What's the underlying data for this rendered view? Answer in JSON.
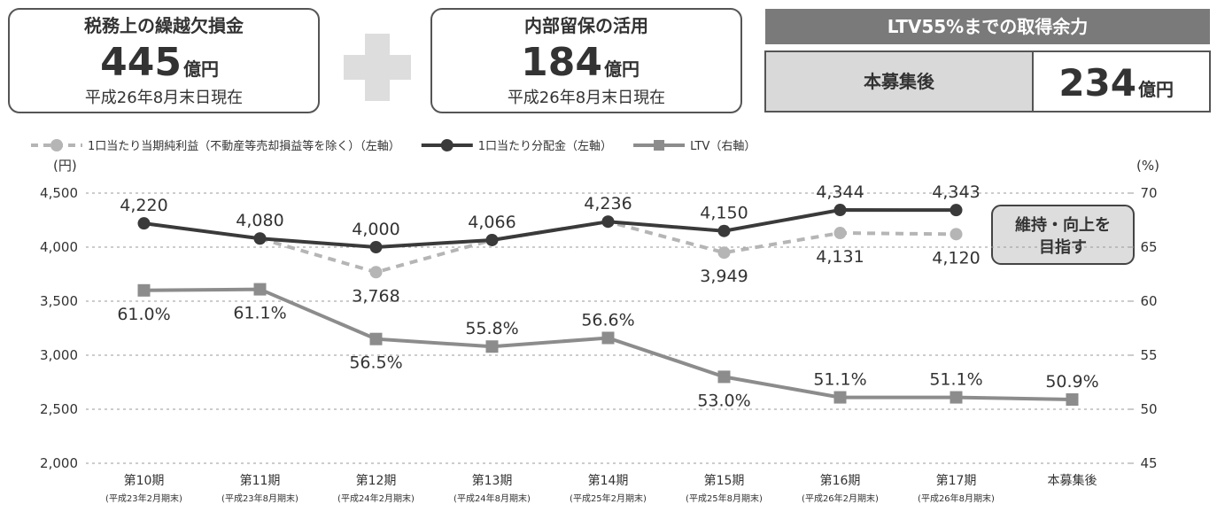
{
  "panels": {
    "box1": {
      "title": "税務上の繰越欠損金",
      "value": 445,
      "unit": "億円",
      "note": "平成26年8月末日現在"
    },
    "box2": {
      "title": "内部留保の活用",
      "value": 184,
      "unit": "億円",
      "note": "平成26年8月末日現在"
    },
    "box3": {
      "header": "LTV55%までの取得余力",
      "label": "本募集後",
      "value": 234,
      "unit": "億円"
    }
  },
  "chart_data": {
    "type": "line",
    "categories": [
      "第10期",
      "第11期",
      "第12期",
      "第13期",
      "第14期",
      "第15期",
      "第16期",
      "第17期",
      "本募集後"
    ],
    "category_sublabels": [
      "(平成23年2月期末)",
      "(平成23年8月期末)",
      "(平成24年2月期末)",
      "(平成24年8月期末)",
      "(平成25年2月期末)",
      "(平成25年8月期末)",
      "(平成26年2月期末)",
      "(平成26年8月期末)",
      null
    ],
    "series": [
      {
        "name": "1口当たり当期純利益（不動産等売却損益等を除く）（左軸）",
        "color": "#b5b5b5",
        "dashed": true,
        "marker": "circle",
        "values": [
          null,
          4080,
          3768,
          4066,
          4236,
          3949,
          4131,
          4120,
          null
        ],
        "value_labels": [
          null,
          null,
          "3,768",
          null,
          null,
          "3,949",
          "4,131",
          "4,120",
          null
        ]
      },
      {
        "name": "1口当たり分配金（左軸）",
        "color": "#3a3a3a",
        "dashed": false,
        "marker": "circle",
        "values": [
          4220,
          4080,
          4000,
          4066,
          4236,
          4150,
          4344,
          4343,
          null
        ],
        "value_labels": [
          "4,220",
          "4,080",
          "4,000",
          "4,066",
          "4,236",
          "4,150",
          "4,344",
          "4,343",
          null
        ]
      },
      {
        "name": "LTV（右軸）",
        "color": "#8c8c8c",
        "dashed": false,
        "marker": "square",
        "axis": "y2",
        "values": [
          61.0,
          61.1,
          56.5,
          55.8,
          56.6,
          53.0,
          51.1,
          51.1,
          50.9
        ],
        "value_labels": [
          "61.0%",
          "61.1%",
          "56.5%",
          "55.8%",
          "56.6%",
          "53.0%",
          "51.1%",
          "51.1%",
          "50.9%"
        ]
      }
    ],
    "ylabel": "(円)",
    "y2label": "(%)",
    "ylim": [
      2000,
      4500
    ],
    "yticks": [
      {
        "value": 2000,
        "label": "2,000"
      },
      {
        "value": 2500,
        "label": "2,500"
      },
      {
        "value": 3000,
        "label": "3,000"
      },
      {
        "value": 3500,
        "label": "3,500"
      },
      {
        "value": 4000,
        "label": "4,000"
      },
      {
        "value": 4500,
        "label": "4,500"
      }
    ],
    "y2lim": [
      45,
      70
    ],
    "y2ticks": [
      45,
      50,
      55,
      60,
      65,
      70
    ],
    "grid": true,
    "annotation": [
      "維持・向上を",
      "目指す"
    ]
  }
}
